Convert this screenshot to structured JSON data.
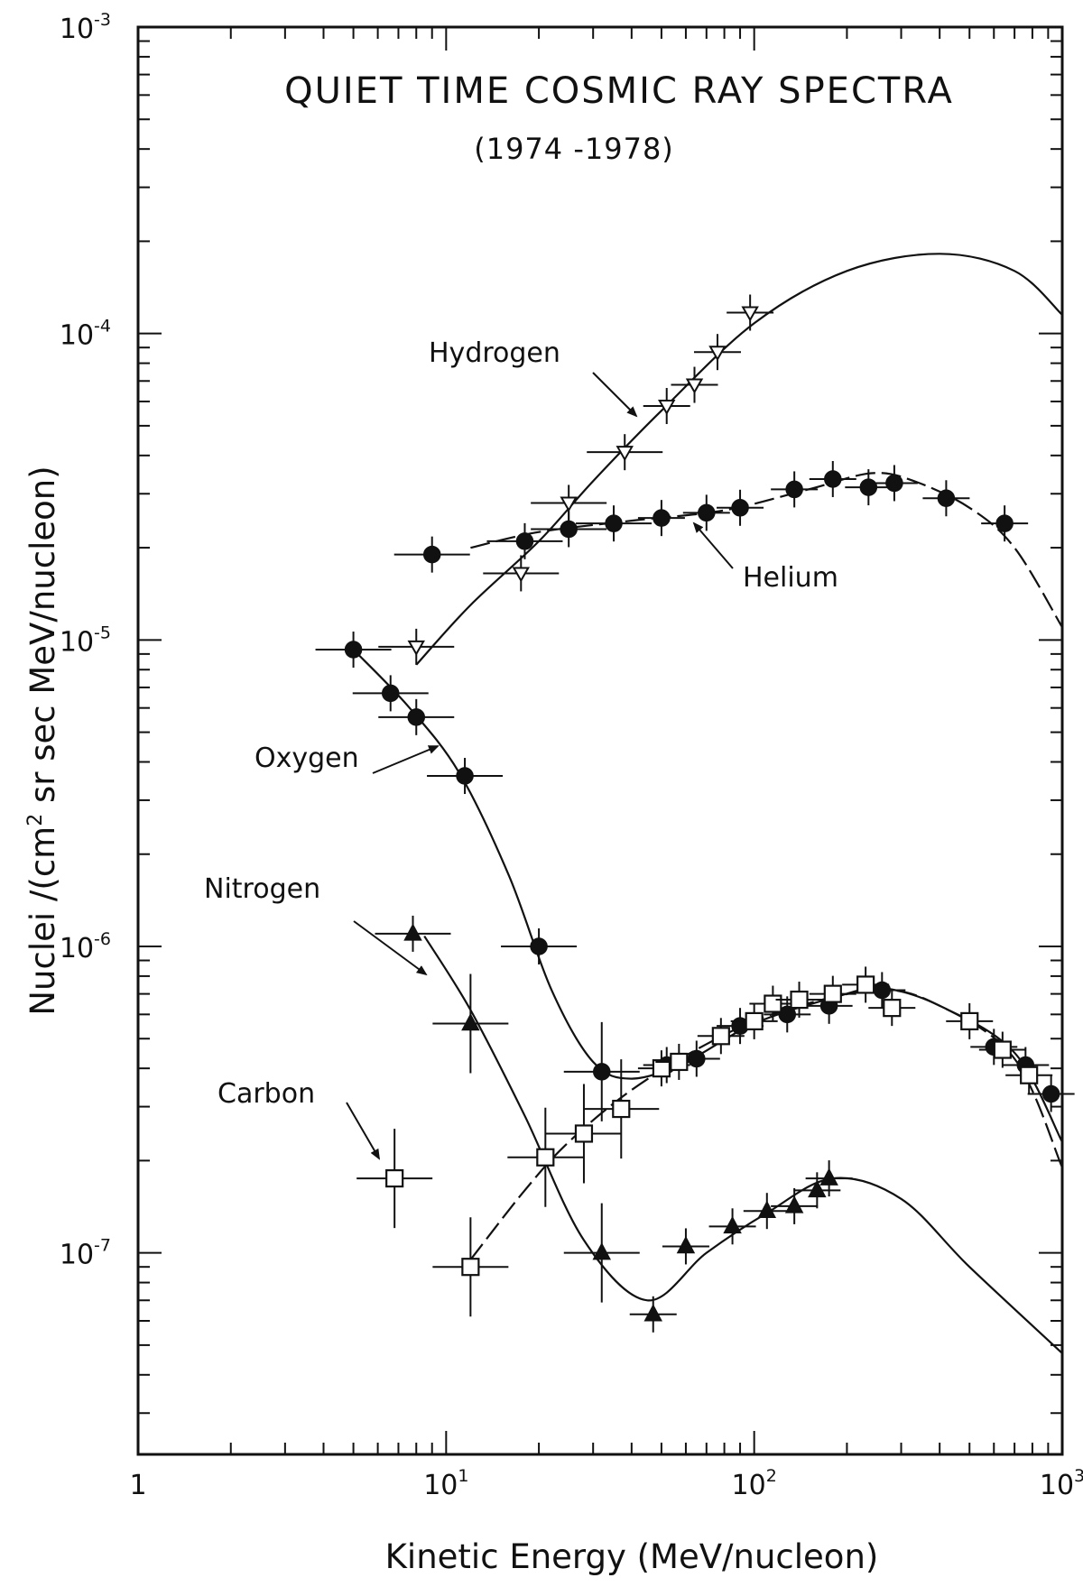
{
  "chart_data": {
    "type": "scatter",
    "title": "QUIET TIME COSMIC RAY SPECTRA",
    "subtitle": "(1974 -1978)",
    "xlabel": "Kinetic Energy (MeV/nucleon)",
    "ylabel_parts": [
      "Nuclei /(cm",
      "2",
      " sr sec MeV/nucleon)"
    ],
    "x_scale": "log",
    "y_scale": "log",
    "xlim": [
      1,
      1000
    ],
    "ylim": [
      2.2e-08,
      0.001
    ],
    "grid": false,
    "x_ticks": [
      {
        "value": 1,
        "base": "1",
        "exp": ""
      },
      {
        "value": 10,
        "base": "10",
        "exp": "1"
      },
      {
        "value": 100,
        "base": "10",
        "exp": "2"
      },
      {
        "value": 1000,
        "base": "10",
        "exp": "3"
      }
    ],
    "y_ticks": [
      {
        "value": 0.001,
        "base": "10",
        "exp": "-3"
      },
      {
        "value": 0.0001,
        "base": "10",
        "exp": "-4"
      },
      {
        "value": 1e-05,
        "base": "10",
        "exp": "-5"
      },
      {
        "value": 1e-06,
        "base": "10",
        "exp": "-6"
      },
      {
        "value": 1e-07,
        "base": "10",
        "exp": "-7"
      }
    ],
    "series": [
      {
        "name": "Hydrogen",
        "marker": "open-triangle-down",
        "points": [
          [
            8.0,
            9.5e-06
          ],
          [
            17.5,
            1.65e-05
          ],
          [
            25,
            2.8e-05
          ],
          [
            38,
            4.1e-05
          ],
          [
            52,
            5.8e-05
          ],
          [
            64,
            6.8e-05
          ],
          [
            76,
            8.7e-05
          ],
          [
            97,
            0.000117
          ]
        ],
        "curve": [
          [
            8.0,
            8.3e-06
          ],
          [
            12,
            1.3e-05
          ],
          [
            20,
            2.1e-05
          ],
          [
            30,
            3.3e-05
          ],
          [
            50,
            5.6e-05
          ],
          [
            100,
            0.000108
          ],
          [
            200,
            0.00016
          ],
          [
            400,
            0.000182
          ],
          [
            700,
            0.00016
          ],
          [
            1000,
            0.000115
          ]
        ]
      },
      {
        "name": "Helium",
        "marker": "filled-circle",
        "points": [
          [
            9.0,
            1.9e-05
          ],
          [
            18,
            2.1e-05
          ],
          [
            25,
            2.3e-05
          ],
          [
            35,
            2.4e-05
          ],
          [
            50,
            2.5e-05
          ],
          [
            70,
            2.6e-05
          ],
          [
            90,
            2.7e-05
          ],
          [
            135,
            3.1e-05
          ],
          [
            180,
            3.35e-05
          ],
          [
            235,
            3.15e-05
          ],
          [
            285,
            3.25e-05
          ],
          [
            420,
            2.9e-05
          ],
          [
            650,
            2.4e-05
          ]
        ],
        "curve": [
          [
            12,
            2e-05
          ],
          [
            20,
            2.25e-05
          ],
          [
            40,
            2.45e-05
          ],
          [
            80,
            2.65e-05
          ],
          [
            150,
            3.1e-05
          ],
          [
            240,
            3.5e-05
          ],
          [
            330,
            3.3e-05
          ],
          [
            500,
            2.7e-05
          ],
          [
            700,
            2e-05
          ],
          [
            1000,
            1.1e-05
          ]
        ]
      },
      {
        "name": "Oxygen",
        "marker": "filled-circle",
        "points": [
          [
            5.0,
            9.3e-06
          ],
          [
            6.6,
            6.7e-06
          ],
          [
            8.0,
            5.6e-06
          ],
          [
            11.5,
            3.6e-06
          ],
          [
            20,
            1e-06
          ],
          [
            32,
            3.9e-07
          ],
          [
            52,
            4.1e-07
          ],
          [
            65,
            4.3e-07
          ],
          [
            90,
            5.5e-07
          ],
          [
            128,
            6e-07
          ],
          [
            175,
            6.4e-07
          ],
          [
            260,
            7.2e-07
          ],
          [
            600,
            4.7e-07
          ],
          [
            760,
            4.1e-07
          ],
          [
            920,
            3.3e-07
          ]
        ],
        "curve": [
          [
            5.0,
            9.3e-06
          ],
          [
            7.5,
            6.1e-06
          ],
          [
            11,
            3.7e-06
          ],
          [
            16,
            1.7e-06
          ],
          [
            22,
            7.2e-07
          ],
          [
            30,
            4.2e-07
          ],
          [
            40,
            3.7e-07
          ],
          [
            60,
            4.2e-07
          ],
          [
            100,
            5.6e-07
          ],
          [
            180,
            6.8e-07
          ],
          [
            260,
            7.3e-07
          ],
          [
            400,
            6.4e-07
          ],
          [
            700,
            4.5e-07
          ],
          [
            1000,
            2.3e-07
          ]
        ]
      },
      {
        "name": "Nitrogen",
        "marker": "filled-triangle",
        "points": [
          [
            7.8,
            1.1e-06
          ],
          [
            12,
            5.6e-07
          ],
          [
            32,
            1e-07
          ],
          [
            47,
            6.3e-08
          ],
          [
            60,
            1.05e-07
          ],
          [
            85,
            1.22e-07
          ],
          [
            110,
            1.37e-07
          ],
          [
            135,
            1.42e-07
          ],
          [
            160,
            1.6e-07
          ],
          [
            175,
            1.75e-07
          ]
        ],
        "curve": [
          [
            8.5,
            1.08e-06
          ],
          [
            12,
            6.2e-07
          ],
          [
            18,
            2.8e-07
          ],
          [
            28,
            1.1e-07
          ],
          [
            45,
            7e-08
          ],
          [
            70,
            1e-07
          ],
          [
            110,
            1.35e-07
          ],
          [
            180,
            1.75e-07
          ],
          [
            300,
            1.5e-07
          ],
          [
            500,
            9e-08
          ],
          [
            1000,
            4.7e-08
          ]
        ]
      },
      {
        "name": "Carbon",
        "marker": "open-square",
        "points": [
          [
            6.8,
            1.75e-07
          ],
          [
            12,
            9e-08
          ],
          [
            21,
            2.05e-07
          ],
          [
            28,
            2.45e-07
          ],
          [
            37,
            2.95e-07
          ],
          [
            50,
            4e-07
          ],
          [
            57,
            4.2e-07
          ],
          [
            78,
            5.1e-07
          ],
          [
            100,
            5.7e-07
          ],
          [
            115,
            6.5e-07
          ],
          [
            140,
            6.7e-07
          ],
          [
            180,
            7e-07
          ],
          [
            230,
            7.5e-07
          ],
          [
            280,
            6.3e-07
          ],
          [
            500,
            5.7e-07
          ],
          [
            640,
            4.6e-07
          ],
          [
            780,
            3.8e-07
          ]
        ],
        "curve": [
          [
            12,
            9.5e-08
          ],
          [
            18,
            1.6e-07
          ],
          [
            25,
            2.3e-07
          ],
          [
            40,
            3.4e-07
          ],
          [
            70,
            4.8e-07
          ],
          [
            120,
            6.1e-07
          ],
          [
            250,
            7.2e-07
          ],
          [
            400,
            6.4e-07
          ],
          [
            700,
            4.3e-07
          ],
          [
            1000,
            1.9e-07
          ]
        ]
      }
    ],
    "annotations": [
      {
        "text": "Hydrogen",
        "series": "Hydrogen"
      },
      {
        "text": "Helium",
        "series": "Helium"
      },
      {
        "text": "Oxygen",
        "series": "Oxygen"
      },
      {
        "text": "Nitrogen",
        "series": "Nitrogen"
      },
      {
        "text": "Carbon",
        "series": "Carbon"
      }
    ]
  }
}
